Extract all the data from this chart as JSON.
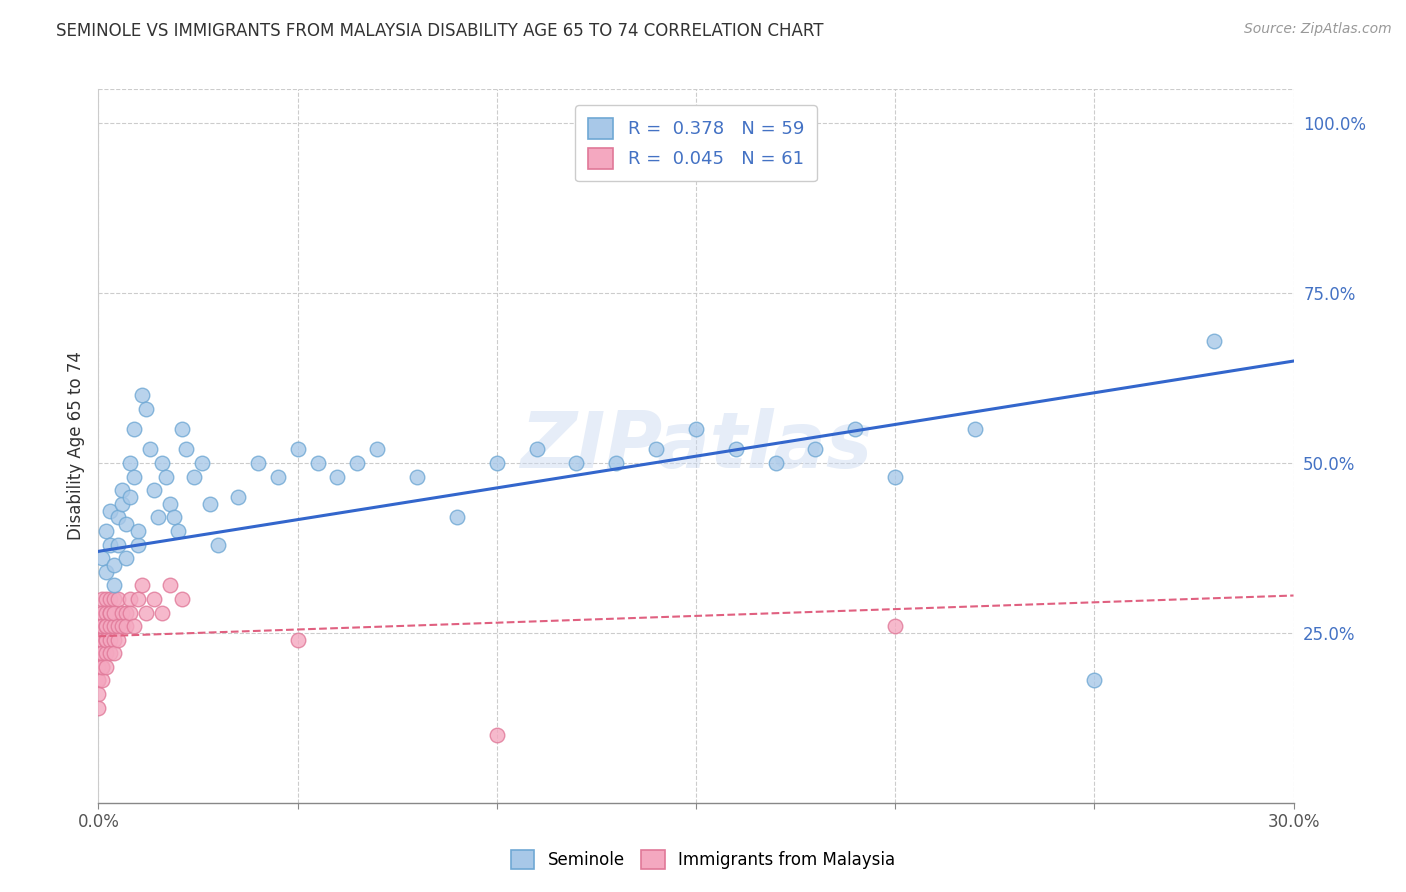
{
  "title": "SEMINOLE VS IMMIGRANTS FROM MALAYSIA DISABILITY AGE 65 TO 74 CORRELATION CHART",
  "source": "Source: ZipAtlas.com",
  "ylabel": "Disability Age 65 to 74",
  "x_min": 0.0,
  "x_max": 0.3,
  "y_min": 0.0,
  "y_max": 1.05,
  "x_ticks": [
    0.0,
    0.05,
    0.1,
    0.15,
    0.2,
    0.25,
    0.3
  ],
  "x_tick_labels_bottom": [
    "0.0%",
    "",
    "",
    "",
    "",
    "",
    "30.0%"
  ],
  "y_ticks_right": [
    0.25,
    0.5,
    0.75,
    1.0
  ],
  "y_tick_labels_right": [
    "25.0%",
    "50.0%",
    "75.0%",
    "100.0%"
  ],
  "seminole_color": "#a8c8e8",
  "malaysia_color": "#f4a8c0",
  "seminole_edge": "#6fa8d4",
  "malaysia_edge": "#e07898",
  "trend_blue": "#3366cc",
  "trend_pink": "#e06080",
  "R_seminole": 0.378,
  "N_seminole": 59,
  "R_malaysia": 0.045,
  "N_malaysia": 61,
  "watermark": "ZIPatlas",
  "legend_label_1": "Seminole",
  "legend_label_2": "Immigrants from Malaysia",
  "seminole_x": [
    0.001,
    0.002,
    0.002,
    0.003,
    0.003,
    0.004,
    0.004,
    0.005,
    0.005,
    0.006,
    0.006,
    0.007,
    0.007,
    0.008,
    0.008,
    0.009,
    0.009,
    0.01,
    0.01,
    0.011,
    0.012,
    0.013,
    0.014,
    0.015,
    0.016,
    0.017,
    0.018,
    0.019,
    0.02,
    0.021,
    0.022,
    0.024,
    0.026,
    0.028,
    0.03,
    0.035,
    0.04,
    0.045,
    0.05,
    0.055,
    0.06,
    0.065,
    0.07,
    0.08,
    0.09,
    0.1,
    0.11,
    0.12,
    0.13,
    0.14,
    0.15,
    0.16,
    0.17,
    0.18,
    0.19,
    0.2,
    0.22,
    0.25,
    0.28
  ],
  "seminole_y": [
    0.36,
    0.4,
    0.34,
    0.38,
    0.43,
    0.35,
    0.32,
    0.42,
    0.38,
    0.44,
    0.46,
    0.41,
    0.36,
    0.45,
    0.5,
    0.55,
    0.48,
    0.38,
    0.4,
    0.6,
    0.58,
    0.52,
    0.46,
    0.42,
    0.5,
    0.48,
    0.44,
    0.42,
    0.4,
    0.55,
    0.52,
    0.48,
    0.5,
    0.44,
    0.38,
    0.45,
    0.5,
    0.48,
    0.52,
    0.5,
    0.48,
    0.5,
    0.52,
    0.48,
    0.42,
    0.5,
    0.52,
    0.5,
    0.5,
    0.52,
    0.55,
    0.52,
    0.5,
    0.52,
    0.55,
    0.48,
    0.55,
    0.18,
    0.68
  ],
  "malaysia_x": [
    0.0,
    0.0,
    0.0,
    0.0,
    0.0,
    0.0,
    0.0,
    0.0,
    0.0,
    0.0,
    0.001,
    0.001,
    0.001,
    0.001,
    0.001,
    0.001,
    0.001,
    0.001,
    0.001,
    0.001,
    0.001,
    0.001,
    0.002,
    0.002,
    0.002,
    0.002,
    0.002,
    0.002,
    0.002,
    0.002,
    0.003,
    0.003,
    0.003,
    0.003,
    0.003,
    0.003,
    0.004,
    0.004,
    0.004,
    0.004,
    0.004,
    0.005,
    0.005,
    0.005,
    0.006,
    0.006,
    0.007,
    0.007,
    0.008,
    0.008,
    0.009,
    0.01,
    0.011,
    0.012,
    0.014,
    0.016,
    0.018,
    0.021,
    0.05,
    0.1,
    0.2
  ],
  "malaysia_y": [
    0.22,
    0.2,
    0.24,
    0.18,
    0.26,
    0.22,
    0.2,
    0.18,
    0.16,
    0.14,
    0.24,
    0.22,
    0.28,
    0.26,
    0.3,
    0.24,
    0.2,
    0.18,
    0.28,
    0.26,
    0.22,
    0.2,
    0.26,
    0.24,
    0.3,
    0.22,
    0.28,
    0.24,
    0.2,
    0.26,
    0.28,
    0.26,
    0.3,
    0.24,
    0.22,
    0.28,
    0.26,
    0.3,
    0.24,
    0.22,
    0.28,
    0.26,
    0.24,
    0.3,
    0.28,
    0.26,
    0.28,
    0.26,
    0.3,
    0.28,
    0.26,
    0.3,
    0.32,
    0.28,
    0.3,
    0.28,
    0.32,
    0.3,
    0.24,
    0.1,
    0.26
  ],
  "seminole_trend_x0": 0.0,
  "seminole_trend_y0": 0.37,
  "seminole_trend_x1": 0.3,
  "seminole_trend_y1": 0.65,
  "malaysia_trend_x0": 0.0,
  "malaysia_trend_y0": 0.245,
  "malaysia_trend_x1": 0.3,
  "malaysia_trend_y1": 0.305
}
